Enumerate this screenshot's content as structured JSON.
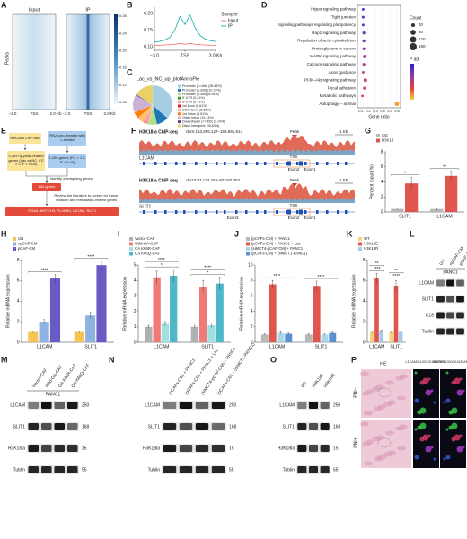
{
  "figure": {
    "A": {
      "letter": "A",
      "titles": [
        "Input",
        "IP"
      ],
      "ylabel": "Peaks",
      "xticks": [
        "−2.0",
        "TSS",
        "2.0 Kb"
      ],
      "colorbar_ticks": [
        {
          "value": 0.28,
          "label": "0.28"
        },
        {
          "value": 0.24,
          "label": "0.24"
        },
        {
          "value": 0.2,
          "label": "0.20"
        },
        {
          "value": 0.16,
          "label": "0.16"
        },
        {
          "value": 0.12,
          "label": "0.12"
        },
        {
          "value": 0.08,
          "label": "0.08"
        }
      ]
    },
    "E": {
      "letter": "E",
      "chip": "H3K18la ChIP-seq",
      "rna": "RNA-seq, treated with L-lactate",
      "chip_genes": "9,259 up-peak-related genes (Lac vs NC, FC > 2, P < 0.05)",
      "rna_genes": "1,200 genes (FC > 1.5, P < 0.05)",
      "overlap": "Identify overlapping genes",
      "overlap_genes": "164 genes",
      "review": "Review the literature to screen for tumor invasion and metastasis-related genes",
      "result": "ITGA4, NOTCH3, PLXNB3, L1CAM, SLIT1"
    },
    "F": {
      "letter": "F",
      "tracks": [
        {
          "title": "H3K18la ChIP-seq",
          "locus": "chrX:153,858,127–153,891,814",
          "scale": "1 KB",
          "peak": "Peak",
          "tss": "TSS",
          "gene": "L1CAM",
          "exons": [
            "Exon2",
            "Exon1"
          ]
        },
        {
          "title": "H3K18la ChIP-seq",
          "locus": "chr10:97,134,263–97,192,053",
          "scale": "1 KB",
          "peak": "Peak",
          "tss": "TSS",
          "gene": "SLIT1",
          "exons": [
            "Exon3",
            "Exon2",
            "Exon1"
          ]
        }
      ]
    },
    "L": {
      "letter": "L",
      "lanes": [
        "UN",
        "npCAF-CM",
        "pCAF-CM"
      ],
      "group": "PANC1",
      "rows": [
        {
          "name": "L1CAM"
        },
        {
          "name": "SLIT1"
        },
        {
          "name": "K18"
        },
        {
          "name": "Tublin"
        }
      ]
    },
    "M": {
      "letter": "M",
      "lanes": [
        "Vector-CAF",
        "Wild-GA-CAF",
        "GA K66R-CAF",
        "GA K66Q-CAF"
      ],
      "group": "PANC1",
      "rows": [
        {
          "name": "L1CAM",
          "mw": 250
        },
        {
          "name": "SLIT1",
          "mw": 168
        },
        {
          "name": "H3K18la",
          "mw": 15
        },
        {
          "name": "Tublin",
          "mw": 55
        }
      ]
    },
    "N": {
      "letter": "N",
      "lanes": [
        "(pCAFs-CM) + PANC1",
        "(pCAFs-CM) + PANC1 + Lac",
        "(siMCT4-pCAF-CM) + PANC1",
        "(pCAFs-CM) + (siMCT1-PANC1)"
      ],
      "rows": [
        {
          "name": "L1CAM",
          "mw": 250
        },
        {
          "name": "SLIT1",
          "mw": 168
        },
        {
          "name": "H3K18la",
          "mw": 15
        },
        {
          "name": "Tublin",
          "mw": 55
        }
      ]
    },
    "O": {
      "letter": "O",
      "lanes": [
        "WT",
        "H3K18E",
        "H3K18R"
      ],
      "rows": [
        {
          "name": "L1CAM",
          "mw": 250
        },
        {
          "name": "SLIT1",
          "mw": 168
        },
        {
          "name": "H3K18la",
          "mw": 15
        },
        {
          "name": "Tublin",
          "mw": 55
        }
      ]
    },
    "P": {
      "letter": "P",
      "columns": [
        "HE",
        "L1CAM/S100/CK19/DAPI",
        "SLIT1/S100/CK19/DAPI"
      ],
      "rows": [
        "PNI−",
        "PNI+"
      ]
    }
  },
  "chart_data": [
    {
      "type": "line",
      "letter": "B",
      "legend_title": "Sample",
      "x": [
        -3,
        -2.5,
        -2,
        -1.5,
        -1,
        -0.5,
        0,
        0.5,
        1,
        1.5,
        2,
        2.5,
        3
      ],
      "series": [
        {
          "name": "Input",
          "color": "#f08070",
          "values": [
            0.105,
            0.105,
            0.106,
            0.107,
            0.108,
            0.111,
            0.108,
            0.111,
            0.108,
            0.107,
            0.106,
            0.105,
            0.105
          ]
        },
        {
          "name": "IP",
          "color": "#26b5b0",
          "values": [
            0.115,
            0.117,
            0.121,
            0.129,
            0.15,
            0.192,
            0.168,
            0.196,
            0.158,
            0.134,
            0.124,
            0.119,
            0.117
          ]
        }
      ],
      "xlim": [
        -3,
        3
      ],
      "xticks": [
        {
          "value": -3,
          "label": "−3.0"
        },
        {
          "value": 0,
          "label": "TSS"
        },
        {
          "value": 3,
          "label": "3.0 Kb"
        }
      ],
      "ylim": [
        0.09,
        0.22
      ],
      "yticks": [
        {
          "value": 0.1,
          "label": "0.10"
        },
        {
          "value": 0.15,
          "label": "0.15"
        },
        {
          "value": 0.2,
          "label": "0.20"
        }
      ]
    },
    {
      "type": "pie",
      "letter": "C",
      "title": "Lac_vs_NC_up_plotAnnoPie",
      "categories": [
        "Promoter (<=1kb) (36.43%)",
        "Promoter (1-2kb) (10.19%)",
        "Promoter (2-3kb) (6.94%)",
        "5' UTR (0.21%)",
        "3' UTR (3.41%)",
        "1st Exon (0.61%)",
        "Other Exon (5.66%)",
        "1st Intron (5.61%)",
        "Other Intron (14.14%)",
        "Downstream (<=300) (1.14%)",
        "Distal Intergenic (15.64%)"
      ],
      "values": [
        36.43,
        10.19,
        6.94,
        0.21,
        3.41,
        0.61,
        5.66,
        5.61,
        14.14,
        1.14,
        15.64
      ],
      "colors": [
        "#a6cee3",
        "#1f78b4",
        "#b2df8a",
        "#33a02c",
        "#fb9a99",
        "#e31a1c",
        "#fdbf6f",
        "#ff7f00",
        "#cab2d6",
        "#6a3d9a",
        "#e8d166"
      ]
    },
    {
      "type": "dot",
      "letter": "D",
      "xlabel": "Gene ratio",
      "size_title": "Count",
      "color_title": "P adj",
      "categories": [
        "Hippo signaling pathway",
        "Tight junction",
        "Signaling pathways regulating pluripotency",
        "Rap1 signaling pathway",
        "Regulation of actin cytoskeleton",
        "Proteoglycans in cancer",
        "MAPK signaling pathway",
        "Calcium signaling pathway",
        "Axon guidance",
        "PI3K–Akt signaling pathway",
        "Focal adhesion",
        "Metabolic pathways",
        "Autophagy – animal"
      ],
      "values": [
        0.13,
        0.13,
        0.13,
        0.14,
        0.14,
        0.14,
        0.15,
        0.14,
        0.13,
        0.16,
        0.15,
        0.12,
        0.6
      ],
      "counts": [
        20,
        22,
        22,
        26,
        28,
        27,
        34,
        28,
        22,
        40,
        30,
        18,
        60
      ],
      "point_colors": [
        "#3a2fd0",
        "#4a34c8",
        "#5a38c0",
        "#6a3cb6",
        "#7a40ac",
        "#8a42a2",
        "#9a4498",
        "#aa468e",
        "#ba4884",
        "#ca4a7a",
        "#da4c70",
        "#e8383a",
        "#f5a030"
      ],
      "size_legend": [
        40,
        80,
        120,
        160
      ],
      "colorscale": [
        "#2c1fd6",
        "#8c3fa8",
        "#e83a3a",
        "#f7d040"
      ],
      "xlim": [
        0.05,
        0.65
      ],
      "xticks": [
        0.1,
        0.2,
        0.3,
        0.4,
        0.5,
        0.6
      ]
    },
    {
      "type": "bar",
      "letter": "G",
      "ylabel": "Percent input (%)",
      "categories": [
        "SLIT1",
        "L1CAM"
      ],
      "series": [
        {
          "name": "IgG",
          "color": "#b8b8b8",
          "values": [
            0.4,
            0.4
          ],
          "errors": [
            0.15,
            0.15
          ]
        },
        {
          "name": "H3K18",
          "color": "#e0564f",
          "values": [
            3.8,
            4.8
          ],
          "errors": [
            0.8,
            0.6
          ]
        }
      ],
      "annotations": [
        [
          "**"
        ],
        [
          "**"
        ]
      ],
      "ylim": [
        0,
        8
      ],
      "yticks": [
        0,
        2,
        4,
        6,
        8
      ]
    },
    {
      "type": "bar",
      "letter": "H",
      "ylabel": "Relative mRNA expression",
      "categories": [
        "L1CAM",
        "SLIT1"
      ],
      "series": [
        {
          "name": "UN",
          "color": "#f5c452",
          "values": [
            1,
            1
          ],
          "errors": [
            0.1,
            0.1
          ]
        },
        {
          "name": "npCAF-CM",
          "color": "#8fb3e0",
          "values": [
            2,
            2.6
          ],
          "errors": [
            0.2,
            0.3
          ]
        },
        {
          "name": "pCAF-CM",
          "color": "#6a5bc4",
          "values": [
            6.2,
            7.5
          ],
          "errors": [
            0.4,
            0.4
          ]
        }
      ],
      "annotations": [
        [
          "****"
        ],
        [
          "****"
        ]
      ],
      "ylim": [
        0,
        8
      ],
      "yticks": [
        0,
        2,
        4,
        6,
        8
      ]
    },
    {
      "type": "bar",
      "letter": "I",
      "ylabel": "Relative mRNA expression",
      "categories": [
        "L1CAM",
        "SLIT1"
      ],
      "series": [
        {
          "name": "Vector-CAF",
          "color": "#b0b0b0",
          "values": [
            1,
            1
          ],
          "errors": [
            0.1,
            0.1
          ]
        },
        {
          "name": "Wild-GA-CAF",
          "color": "#f07a78",
          "values": [
            4.2,
            3.6
          ],
          "errors": [
            0.4,
            0.4
          ]
        },
        {
          "name": "GA K66R-CAF",
          "color": "#9fe0e0",
          "values": [
            1.2,
            1.1
          ],
          "errors": [
            0.15,
            0.15
          ]
        },
        {
          "name": "GA K66Q-CAF",
          "color": "#4fb8c8",
          "values": [
            4.3,
            3.8
          ],
          "errors": [
            0.4,
            0.4
          ]
        }
      ],
      "annotations": [
        [
          "*",
          "****"
        ],
        [
          "*",
          "****"
        ]
      ],
      "ylim": [
        0,
        5
      ],
      "yticks": [
        0,
        1,
        2,
        3,
        4,
        5
      ]
    },
    {
      "type": "bar",
      "letter": "J",
      "ylabel": "Relative mRNA expression",
      "categories": [
        "L1CAM",
        "SLIT1"
      ],
      "series": [
        {
          "name": "(pCAFs-CM) + PANC1",
          "color": "#b8b8b8",
          "values": [
            1,
            1
          ],
          "errors": [
            0.1,
            0.1
          ]
        },
        {
          "name": "(pCAFs-CM) + PANC1 + Lac",
          "color": "#e0564f",
          "values": [
            7.5,
            7.3
          ],
          "errors": [
            0.5,
            0.6
          ]
        },
        {
          "name": "(siMCT4-pCAF-CM) + PANC1",
          "color": "#a8d8ea",
          "values": [
            1.2,
            1
          ],
          "errors": [
            0.15,
            0.1
          ]
        },
        {
          "name": "(pCAFs-CM) + (siMCT1-PANC1)",
          "color": "#5a8fd0",
          "values": [
            1.1,
            1.2
          ],
          "errors": [
            0.1,
            0.15
          ]
        }
      ],
      "annotations": [
        [
          "****"
        ],
        [
          "****"
        ]
      ],
      "ylim": [
        0,
        10
      ],
      "yticks": [
        0,
        2,
        4,
        6,
        8,
        10
      ]
    },
    {
      "type": "bar",
      "letter": "K",
      "ylabel": "Relative mRNA expression",
      "categories": [
        "L1CAM",
        "SLIT1"
      ],
      "series": [
        {
          "name": "WT",
          "color": "#f5d27a",
          "values": [
            1,
            1
          ],
          "errors": [
            0.1,
            0.1
          ]
        },
        {
          "name": "H3K18E",
          "color": "#e0564f",
          "values": [
            6.2,
            5.5
          ],
          "errors": [
            0.5,
            0.5
          ]
        },
        {
          "name": "H3K18R",
          "color": "#a8c8ea",
          "values": [
            1.1,
            1
          ],
          "errors": [
            0.1,
            0.1
          ]
        }
      ],
      "annotations": [
        [
          "****",
          "**"
        ],
        [
          "****",
          "**"
        ]
      ],
      "ylim": [
        0,
        8
      ],
      "yticks": [
        0,
        2,
        4,
        6,
        8
      ]
    }
  ]
}
